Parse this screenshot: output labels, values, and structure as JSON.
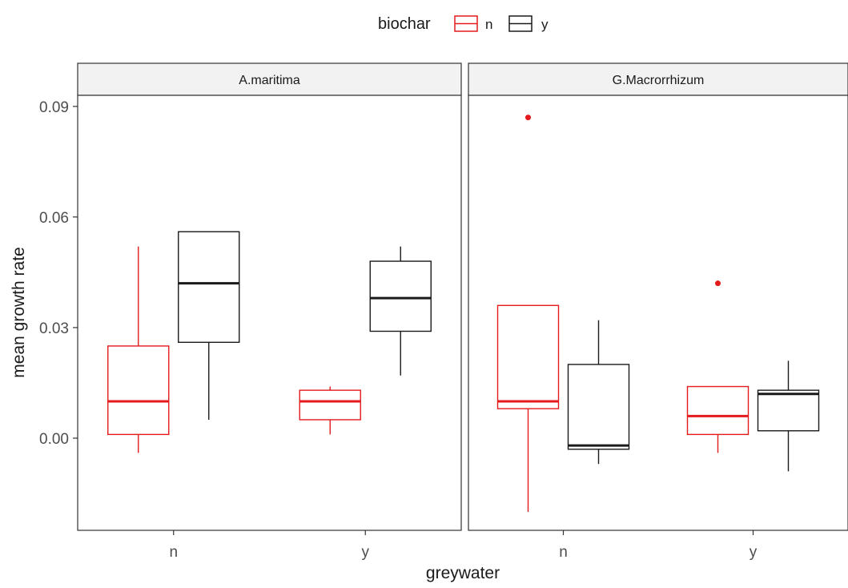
{
  "chart_data": {
    "type": "boxplot",
    "xlabel": "greywater",
    "ylabel": "mean growth rate",
    "ylim": [
      -0.025,
      0.093
    ],
    "yticks": [
      0.0,
      0.03,
      0.06,
      0.09
    ],
    "ytick_labels": [
      "0.00",
      "0.03",
      "0.06",
      "0.09"
    ],
    "categories": [
      "n",
      "y"
    ],
    "grid": false,
    "legend": {
      "title": "biochar",
      "position": "top",
      "entries": [
        {
          "label": "n",
          "color": "#e41a1c"
        },
        {
          "label": "y",
          "color": "#1a1a1a"
        }
      ]
    },
    "panels": [
      {
        "title": "A.maritima",
        "boxes": [
          {
            "greywater": "n",
            "biochar": "n",
            "lower_whisker": -0.004,
            "q1": 0.001,
            "median": 0.01,
            "q3": 0.025,
            "upper_whisker": 0.052,
            "outliers": []
          },
          {
            "greywater": "n",
            "biochar": "y",
            "lower_whisker": 0.005,
            "q1": 0.026,
            "median": 0.042,
            "q3": 0.056,
            "upper_whisker": 0.056,
            "outliers": []
          },
          {
            "greywater": "y",
            "biochar": "n",
            "lower_whisker": 0.001,
            "q1": 0.005,
            "median": 0.01,
            "q3": 0.013,
            "upper_whisker": 0.014,
            "outliers": []
          },
          {
            "greywater": "y",
            "biochar": "y",
            "lower_whisker": 0.017,
            "q1": 0.029,
            "median": 0.038,
            "q3": 0.048,
            "upper_whisker": 0.052,
            "outliers": []
          }
        ]
      },
      {
        "title": "G.Macrorrhizum",
        "boxes": [
          {
            "greywater": "n",
            "biochar": "n",
            "lower_whisker": -0.02,
            "q1": 0.008,
            "median": 0.01,
            "q3": 0.036,
            "upper_whisker": 0.036,
            "outliers": [
              0.087
            ]
          },
          {
            "greywater": "n",
            "biochar": "y",
            "lower_whisker": -0.007,
            "q1": -0.003,
            "median": -0.002,
            "q3": 0.02,
            "upper_whisker": 0.032,
            "outliers": []
          },
          {
            "greywater": "y",
            "biochar": "n",
            "lower_whisker": -0.004,
            "q1": 0.001,
            "median": 0.006,
            "q3": 0.014,
            "upper_whisker": 0.014,
            "outliers": [
              0.042
            ]
          },
          {
            "greywater": "y",
            "biochar": "y",
            "lower_whisker": -0.009,
            "q1": 0.002,
            "median": 0.012,
            "q3": 0.013,
            "upper_whisker": 0.021,
            "outliers": []
          }
        ]
      }
    ]
  }
}
